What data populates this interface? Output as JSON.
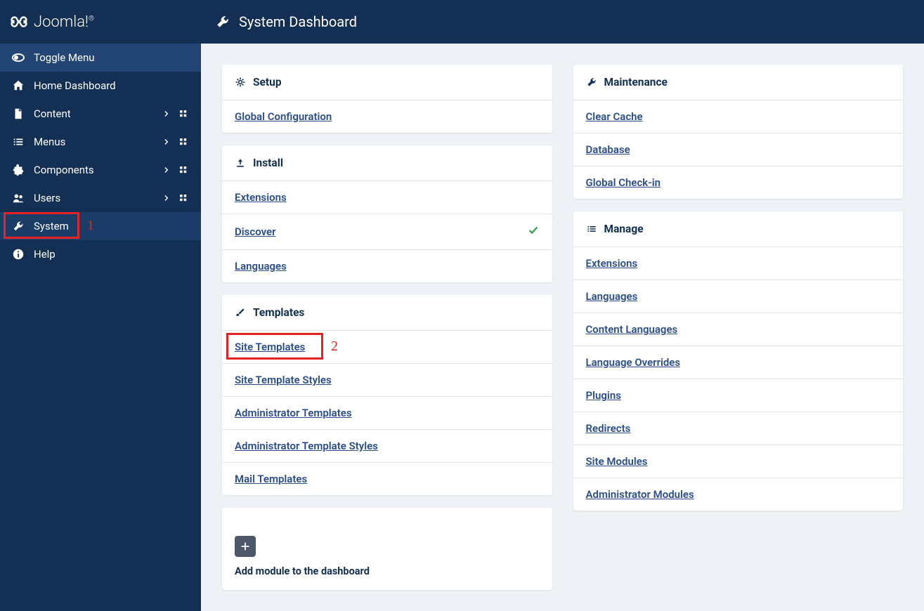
{
  "brand": "Joomla!",
  "header": {
    "title": "System Dashboard"
  },
  "sidebar": {
    "toggle": "Toggle Menu",
    "items": [
      {
        "label": "Home Dashboard",
        "icon": "home",
        "hasChevron": false,
        "hasGrid": false
      },
      {
        "label": "Content",
        "icon": "file",
        "hasChevron": true,
        "hasGrid": true
      },
      {
        "label": "Menus",
        "icon": "list",
        "hasChevron": true,
        "hasGrid": true
      },
      {
        "label": "Components",
        "icon": "puzzle",
        "hasChevron": true,
        "hasGrid": true
      },
      {
        "label": "Users",
        "icon": "users",
        "hasChevron": true,
        "hasGrid": true
      },
      {
        "label": "System",
        "icon": "wrench",
        "hasChevron": false,
        "hasGrid": false,
        "active": true
      },
      {
        "label": "Help",
        "icon": "info",
        "hasChevron": false,
        "hasGrid": false
      }
    ]
  },
  "annotations": {
    "sidebar": {
      "num": "1"
    },
    "siteTemplates": {
      "num": "2"
    }
  },
  "panels": {
    "left": [
      {
        "title": "Setup",
        "icon": "gear",
        "links": [
          {
            "label": "Global Configuration"
          }
        ]
      },
      {
        "title": "Install",
        "icon": "upload",
        "links": [
          {
            "label": "Extensions"
          },
          {
            "label": "Discover",
            "check": true
          },
          {
            "label": "Languages"
          }
        ]
      },
      {
        "title": "Templates",
        "icon": "brush",
        "links": [
          {
            "label": "Site Templates",
            "highlight": true
          },
          {
            "label": "Site Template Styles"
          },
          {
            "label": "Administrator Templates"
          },
          {
            "label": "Administrator Template Styles"
          },
          {
            "label": "Mail Templates"
          }
        ]
      }
    ],
    "right": [
      {
        "title": "Maintenance",
        "icon": "wrench",
        "links": [
          {
            "label": "Clear Cache"
          },
          {
            "label": "Database"
          },
          {
            "label": "Global Check-in"
          }
        ]
      },
      {
        "title": "Manage",
        "icon": "listcheck",
        "links": [
          {
            "label": "Extensions"
          },
          {
            "label": "Languages"
          },
          {
            "label": "Content Languages"
          },
          {
            "label": "Language Overrides"
          },
          {
            "label": "Plugins"
          },
          {
            "label": "Redirects"
          },
          {
            "label": "Site Modules"
          },
          {
            "label": "Administrator Modules"
          }
        ]
      }
    ]
  },
  "addModule": {
    "label": "Add module to the dashboard"
  },
  "colors": {
    "sidebarBg": "#132f53",
    "sidebarActive": "#1a3c67",
    "sidebarToggle": "#224576",
    "link": "#2a4d8f",
    "bodyBg": "#eef1f5",
    "highlight": "#e62222",
    "check": "#2f9e44"
  }
}
